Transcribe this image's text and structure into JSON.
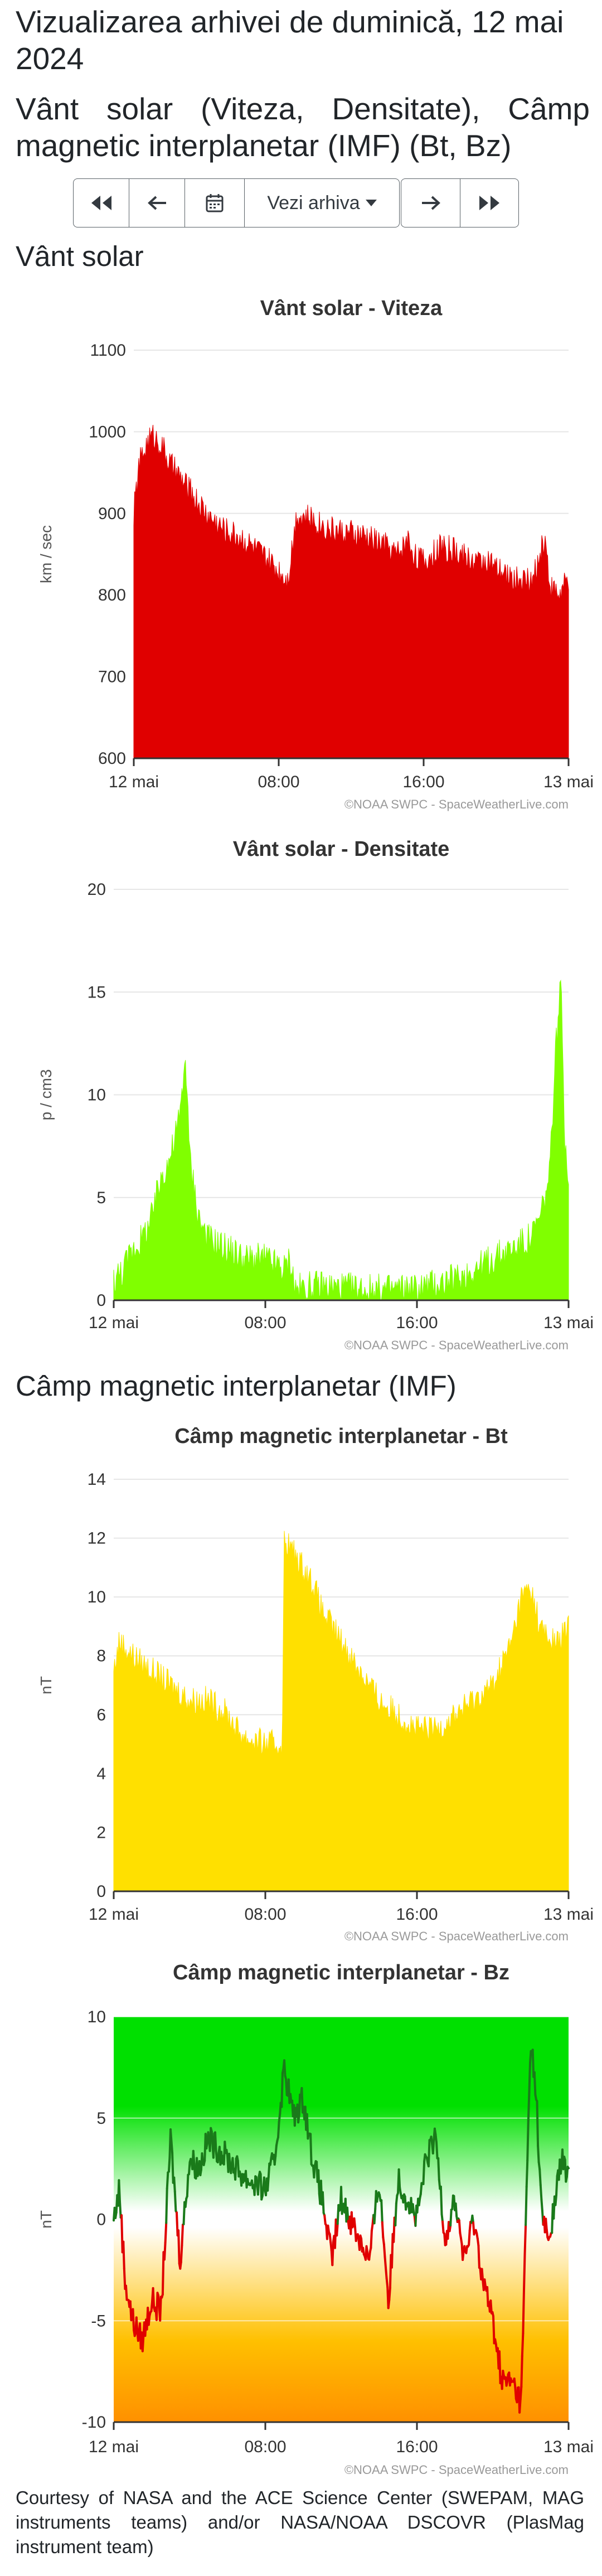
{
  "page": {
    "title": "Vizualizarea arhivei de duminică, 12 mai 2024",
    "subtitle": "Vânt solar (Viteza, Densitate), Câmp magnetic interplanetar (IMF) (Bt, Bz)",
    "section_solar_wind": "Vânt solar",
    "section_imf": "Câmp magnetic interplanetar (IMF)",
    "credit": "Courtesy of NASA and the ACE Science Center (SWEPAM, MAG instruments teams) and/or NASA/NOAA DSCOVR (PlasMag instrument team)",
    "watermark": "©NOAA SWPC - SpaceWeatherLive.com"
  },
  "nav": {
    "first_icon": "double-chevron-left-icon",
    "prev_icon": "arrow-left-icon",
    "calendar_icon": "calendar-icon",
    "archive_label": "Vezi arhiva",
    "next_icon": "arrow-right-icon",
    "last_icon": "double-chevron-right-icon"
  },
  "chart_data": [
    {
      "id": "speed",
      "type": "area",
      "title": "Vânt solar - Viteza",
      "ylabel": "km / sec",
      "ylim": [
        600,
        1100
      ],
      "yticks": [
        600,
        700,
        800,
        900,
        1000,
        1100
      ],
      "xticks": [
        "12 mai",
        "08:00",
        "16:00",
        "13 mai"
      ],
      "xlim_hours": [
        0,
        24
      ],
      "color": "#e00000",
      "x": [
        0,
        0.3,
        0.8,
        1.1,
        1.5,
        2,
        3,
        4,
        5,
        6,
        7,
        8,
        8.5,
        9,
        10,
        11,
        12,
        13,
        14,
        14.5,
        14.9,
        15.1,
        15.5,
        16,
        17,
        18,
        19,
        19.5,
        20,
        21,
        22,
        22.7,
        23,
        23.5,
        24
      ],
      "values": [
        900,
        960,
        990,
        995,
        985,
        960,
        930,
        900,
        880,
        870,
        850,
        830,
        820,
        900,
        890,
        880,
        875,
        870,
        860,
        850,
        860,
        870,
        850,
        840,
        860,
        850,
        840,
        845,
        830,
        820,
        815,
        870,
        810,
        800,
        820
      ]
    },
    {
      "id": "density",
      "type": "area",
      "title": "Vânt solar - Densitate",
      "ylabel": "p / cm3",
      "ylim": [
        0,
        20
      ],
      "yticks": [
        0,
        5,
        10,
        15,
        20
      ],
      "xticks": [
        "12 mai",
        "08:00",
        "16:00",
        "13 mai"
      ],
      "xlim_hours": [
        0,
        24
      ],
      "color": "#80ff00",
      "x": [
        0,
        0.5,
        1,
        1.5,
        2,
        2.5,
        3,
        3.5,
        3.8,
        4,
        4.5,
        5,
        6,
        7,
        8,
        9,
        9.3,
        9.6,
        10,
        11,
        12,
        14,
        16,
        18,
        20,
        21,
        22,
        22.5,
        23,
        23.3,
        23.6,
        23.8,
        24
      ],
      "values": [
        1,
        1.5,
        2.5,
        3,
        4,
        6,
        7,
        9,
        12,
        7,
        4,
        3,
        2.5,
        2,
        2,
        1.5,
        2,
        0.5,
        0.6,
        0.7,
        0.6,
        0.5,
        0.6,
        1,
        2,
        2.5,
        3,
        4,
        6,
        12,
        15.5,
        8,
        6
      ]
    },
    {
      "id": "bt",
      "type": "area",
      "title": "Câmp magnetic interplanetar - Bt",
      "ylabel": "nT",
      "ylim": [
        0,
        14
      ],
      "yticks": [
        0,
        2,
        4,
        6,
        8,
        10,
        12,
        14
      ],
      "xticks": [
        "12 mai",
        "08:00",
        "16:00",
        "13 mai"
      ],
      "xlim_hours": [
        0,
        24
      ],
      "color": "#ffe000",
      "x": [
        0,
        0.3,
        1,
        2,
        3,
        4,
        5,
        6,
        6.5,
        7,
        8,
        8.9,
        9.0,
        9.5,
        10,
        10.5,
        11,
        12,
        13,
        14,
        15,
        16,
        17,
        18,
        19,
        20,
        21,
        21.5,
        22,
        22.5,
        23,
        23.5,
        24
      ],
      "values": [
        7.5,
        8.5,
        8,
        7.5,
        7,
        6.5,
        6.5,
        6,
        5.5,
        5.2,
        5,
        5,
        12,
        11.5,
        11,
        10.5,
        9.5,
        8.5,
        7.5,
        6.5,
        6,
        5.5,
        5.5,
        6,
        6.5,
        7,
        8.5,
        10,
        10.3,
        9,
        8.5,
        8.5,
        9
      ]
    },
    {
      "id": "bz",
      "type": "line",
      "title": "Câmp magnetic interplanetar - Bz",
      "ylabel": "nT",
      "ylim": [
        -10,
        10
      ],
      "yticks": [
        -10,
        -5,
        0,
        5,
        10
      ],
      "xticks": [
        "12 mai",
        "08:00",
        "16:00",
        "13 mai"
      ],
      "xlim_hours": [
        0,
        24
      ],
      "positive_color": "#1a7a1a",
      "negative_color": "#e00000",
      "x": [
        0,
        0.3,
        0.6,
        1,
        1.5,
        2,
        2.5,
        3,
        3.5,
        4,
        4.5,
        5,
        6,
        7,
        8,
        8.5,
        9,
        9.5,
        10,
        10.5,
        11,
        11.5,
        12,
        12.5,
        13,
        13.5,
        14,
        14.5,
        15,
        15.5,
        16,
        16.5,
        17,
        17.5,
        18,
        18.5,
        19,
        19.5,
        20,
        20.5,
        21,
        21.5,
        22,
        22.3,
        22.6,
        23,
        23.3,
        23.6,
        24
      ],
      "values": [
        0,
        1.5,
        -3,
        -5,
        -6,
        -4,
        -4.5,
        4,
        -2,
        3,
        2.5,
        4,
        3,
        2,
        1.5,
        3,
        7.5,
        5,
        6,
        3,
        1,
        -2,
        1,
        0,
        -1,
        -2,
        2,
        -4,
        2,
        1,
        0,
        3,
        4,
        -1,
        1,
        -2,
        0,
        -3,
        -5,
        -8,
        -8,
        -9,
        9,
        6,
        0,
        -1,
        1,
        3,
        2
      ]
    }
  ]
}
